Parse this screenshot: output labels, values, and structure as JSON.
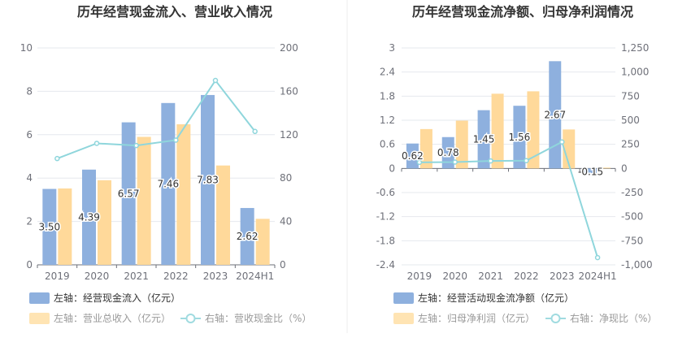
{
  "charts": [
    {
      "title": "历年经营现金流入、营业收入情况",
      "legend": [
        {
          "label": "左轴：经营现金流入（亿元）",
          "color": "#8eb0de",
          "kind": "bar",
          "active": true
        },
        {
          "label": "左轴：营业总收入（亿元）",
          "color": "#ffe4b3",
          "kind": "bar",
          "active": false
        },
        {
          "label": "右轴：营收现金比（%）",
          "color": "#a0dbe0",
          "kind": "line",
          "active": false
        }
      ]
    },
    {
      "title": "历年经营现金流净额、归母净利润情况",
      "legend": [
        {
          "label": "左轴：经营活动现金流净额（亿元）",
          "color": "#8eb0de",
          "kind": "bar",
          "active": true
        },
        {
          "label": "左轴：归母净利润（亿元）",
          "color": "#ffe4b3",
          "kind": "bar",
          "active": false
        },
        {
          "label": "右轴：净现比（%）",
          "color": "#a0dbe0",
          "kind": "line",
          "active": false
        }
      ]
    }
  ],
  "chart_data": [
    {
      "type": "bar",
      "title": "历年经营现金流入、营业收入情况",
      "categories": [
        "2019",
        "2020",
        "2021",
        "2022",
        "2023",
        "2024H1"
      ],
      "series": [
        {
          "name": "左轴：经营现金流入（亿元）",
          "axis": "left",
          "type": "bar",
          "color": "#8eb0de",
          "values": [
            3.5,
            4.39,
            6.57,
            7.46,
            7.83,
            2.62
          ],
          "labels": [
            "3.50",
            "4.39",
            "6.57",
            "7.46",
            "7.83",
            "2.62"
          ]
        },
        {
          "name": "左轴：营业总收入（亿元）",
          "axis": "left",
          "type": "bar",
          "color": "#ffd99a",
          "values": [
            3.52,
            3.9,
            5.9,
            6.48,
            4.58,
            2.12
          ]
        },
        {
          "name": "右轴：营收现金比（%）",
          "axis": "right",
          "type": "line",
          "color": "#8fd6dc",
          "values": [
            98,
            112,
            110,
            115,
            170,
            123
          ]
        }
      ],
      "ylim_left": [
        0,
        10
      ],
      "yticks_left": [
        "0",
        "2",
        "4",
        "6",
        "8",
        "10"
      ],
      "ylim_right": [
        0,
        200
      ],
      "yticks_right": [
        "0",
        "40",
        "80",
        "120",
        "160",
        "200"
      ],
      "grid": true
    },
    {
      "type": "bar",
      "title": "历年经营现金流净额、归母净利润情况",
      "categories": [
        "2019",
        "2020",
        "2021",
        "2022",
        "2023",
        "2024H1"
      ],
      "series": [
        {
          "name": "左轴：经营活动现金流净额（亿元）",
          "axis": "left",
          "type": "bar",
          "color": "#8eb0de",
          "values": [
            0.62,
            0.78,
            1.45,
            1.56,
            2.67,
            -0.15
          ],
          "labels": [
            "0.62",
            "0.78",
            "1.45",
            "1.56",
            "2.67",
            "-0.15"
          ]
        },
        {
          "name": "左轴：归母净利润（亿元）",
          "axis": "left",
          "type": "bar",
          "color": "#ffd99a",
          "values": [
            0.98,
            1.19,
            1.86,
            1.92,
            0.97,
            0.02
          ]
        },
        {
          "name": "右轴：净现比（%）",
          "axis": "right",
          "type": "line",
          "color": "#8fd6dc",
          "values": [
            63,
            66,
            78,
            81,
            275,
            -925
          ]
        }
      ],
      "ylim_left": [
        -2.4,
        3
      ],
      "yticks_left": [
        "-2.4",
        "-1.8",
        "-1.2",
        "-0.6",
        "0",
        "0.6",
        "1.2",
        "1.8",
        "2.4",
        "3"
      ],
      "ylim_right": [
        -1000,
        1250
      ],
      "yticks_right": [
        "-1,000",
        "-750",
        "-500",
        "-250",
        "0",
        "250",
        "500",
        "750",
        "1,000",
        "1,250"
      ],
      "grid": true
    }
  ]
}
